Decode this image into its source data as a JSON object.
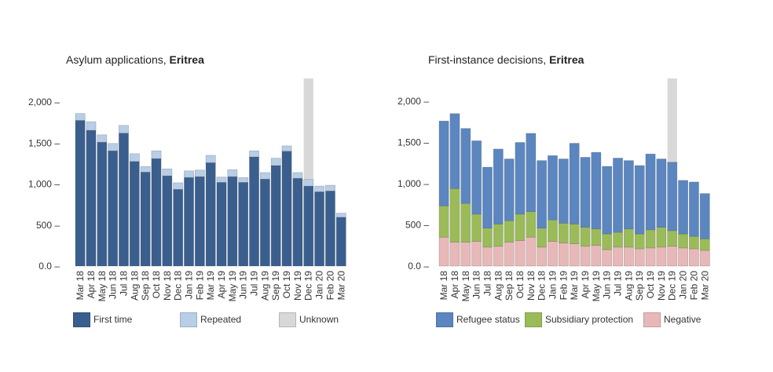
{
  "charts": [
    {
      "title_prefix": "Asylum applications, ",
      "title_country": "Eritrea"
    },
    {
      "title_prefix": "First-instance decisions, ",
      "title_country": "Eritrea"
    }
  ],
  "chart_data": [
    {
      "type": "bar",
      "stacked": true,
      "title": "Asylum applications, Eritrea",
      "categories": [
        "Mar 18",
        "Apr 18",
        "May 18",
        "Jun 18",
        "Jul 18",
        "Aug 18",
        "Sep 18",
        "Oct 18",
        "Nov 18",
        "Dec 18",
        "Jan 19",
        "Feb 19",
        "Mar 19",
        "Apr 19",
        "May 19",
        "Jun 19",
        "Jul 19",
        "Aug 19",
        "Sep 19",
        "Oct 19",
        "Nov 19",
        "Dec 19",
        "Jan 20",
        "Feb 20",
        "Mar 20"
      ],
      "series": [
        {
          "name": "First time",
          "color": "#3a5f8f",
          "values": [
            1775,
            1655,
            1510,
            1405,
            1620,
            1275,
            1145,
            1310,
            1100,
            935,
            1080,
            1090,
            1260,
            1020,
            1090,
            1020,
            1330,
            1060,
            1225,
            1400,
            1070,
            975,
            905,
            915,
            595
          ]
        },
        {
          "name": "Repeated",
          "color": "#b8cde6",
          "values": [
            85,
            105,
            90,
            90,
            95,
            95,
            70,
            95,
            85,
            80,
            80,
            80,
            90,
            65,
            85,
            60,
            75,
            80,
            90,
            65,
            70,
            80,
            70,
            70,
            50
          ]
        }
      ],
      "highlight": {
        "name": "Unknown",
        "color": "#d8d8d8",
        "category": "Dec 19"
      },
      "yticks": [
        0,
        500,
        1000,
        1500,
        2000
      ],
      "ytick_labels": [
        "0.0 –",
        "500 –",
        "1,000 –",
        "1,500 –",
        "2,000 –"
      ],
      "ylim": [
        0,
        2000
      ]
    },
    {
      "type": "bar",
      "stacked": true,
      "title": "First-instance decisions, Eritrea",
      "categories": [
        "Mar 18",
        "Apr 18",
        "May 18",
        "Jun 18",
        "Jul 18",
        "Aug 18",
        "Sep 18",
        "Oct 18",
        "Nov 18",
        "Dec 18",
        "Jan 19",
        "Feb 19",
        "Mar 19",
        "Apr 19",
        "May 19",
        "Jun 19",
        "Jul 19",
        "Aug 19",
        "Sep 19",
        "Oct 19",
        "Nov 19",
        "Dec 19",
        "Jan 20",
        "Feb 20",
        "Mar 20"
      ],
      "series": [
        {
          "name": "Negative",
          "color": "#e8b8b8",
          "values": [
            350,
            290,
            290,
            300,
            230,
            240,
            290,
            310,
            350,
            230,
            300,
            280,
            270,
            240,
            250,
            200,
            230,
            230,
            210,
            220,
            230,
            240,
            220,
            210,
            190
          ]
        },
        {
          "name": "Subsidiary protection",
          "color": "#9bbb59",
          "values": [
            380,
            650,
            470,
            330,
            230,
            270,
            260,
            320,
            310,
            230,
            260,
            240,
            240,
            230,
            200,
            190,
            180,
            220,
            180,
            220,
            240,
            190,
            170,
            150,
            140
          ]
        },
        {
          "name": "Refugee status",
          "color": "#5b86c0",
          "values": [
            1030,
            910,
            910,
            890,
            740,
            910,
            750,
            870,
            950,
            820,
            780,
            780,
            980,
            850,
            930,
            820,
            900,
            830,
            830,
            920,
            830,
            830,
            650,
            660,
            550
          ]
        }
      ],
      "highlight": {
        "name": "",
        "color": "#d8d8d8",
        "category": "Dec 19"
      },
      "yticks": [
        0,
        500,
        1000,
        1500,
        2000
      ],
      "ytick_labels": [
        "0.0 –",
        "500 –",
        "1,000 –",
        "1,500 –",
        "2,000 –"
      ],
      "ylim": [
        0,
        2000
      ]
    }
  ],
  "legends": [
    [
      {
        "label": "First time",
        "color": "#3a5f8f"
      },
      {
        "label": "Repeated",
        "color": "#b8cde6"
      },
      {
        "label": "Unknown",
        "color": "#d8d8d8"
      }
    ],
    [
      {
        "label": "Refugee status",
        "color": "#5b86c0"
      },
      {
        "label": "Subsidiary protection",
        "color": "#9bbb59"
      },
      {
        "label": "Negative",
        "color": "#e8b8b8"
      }
    ]
  ]
}
